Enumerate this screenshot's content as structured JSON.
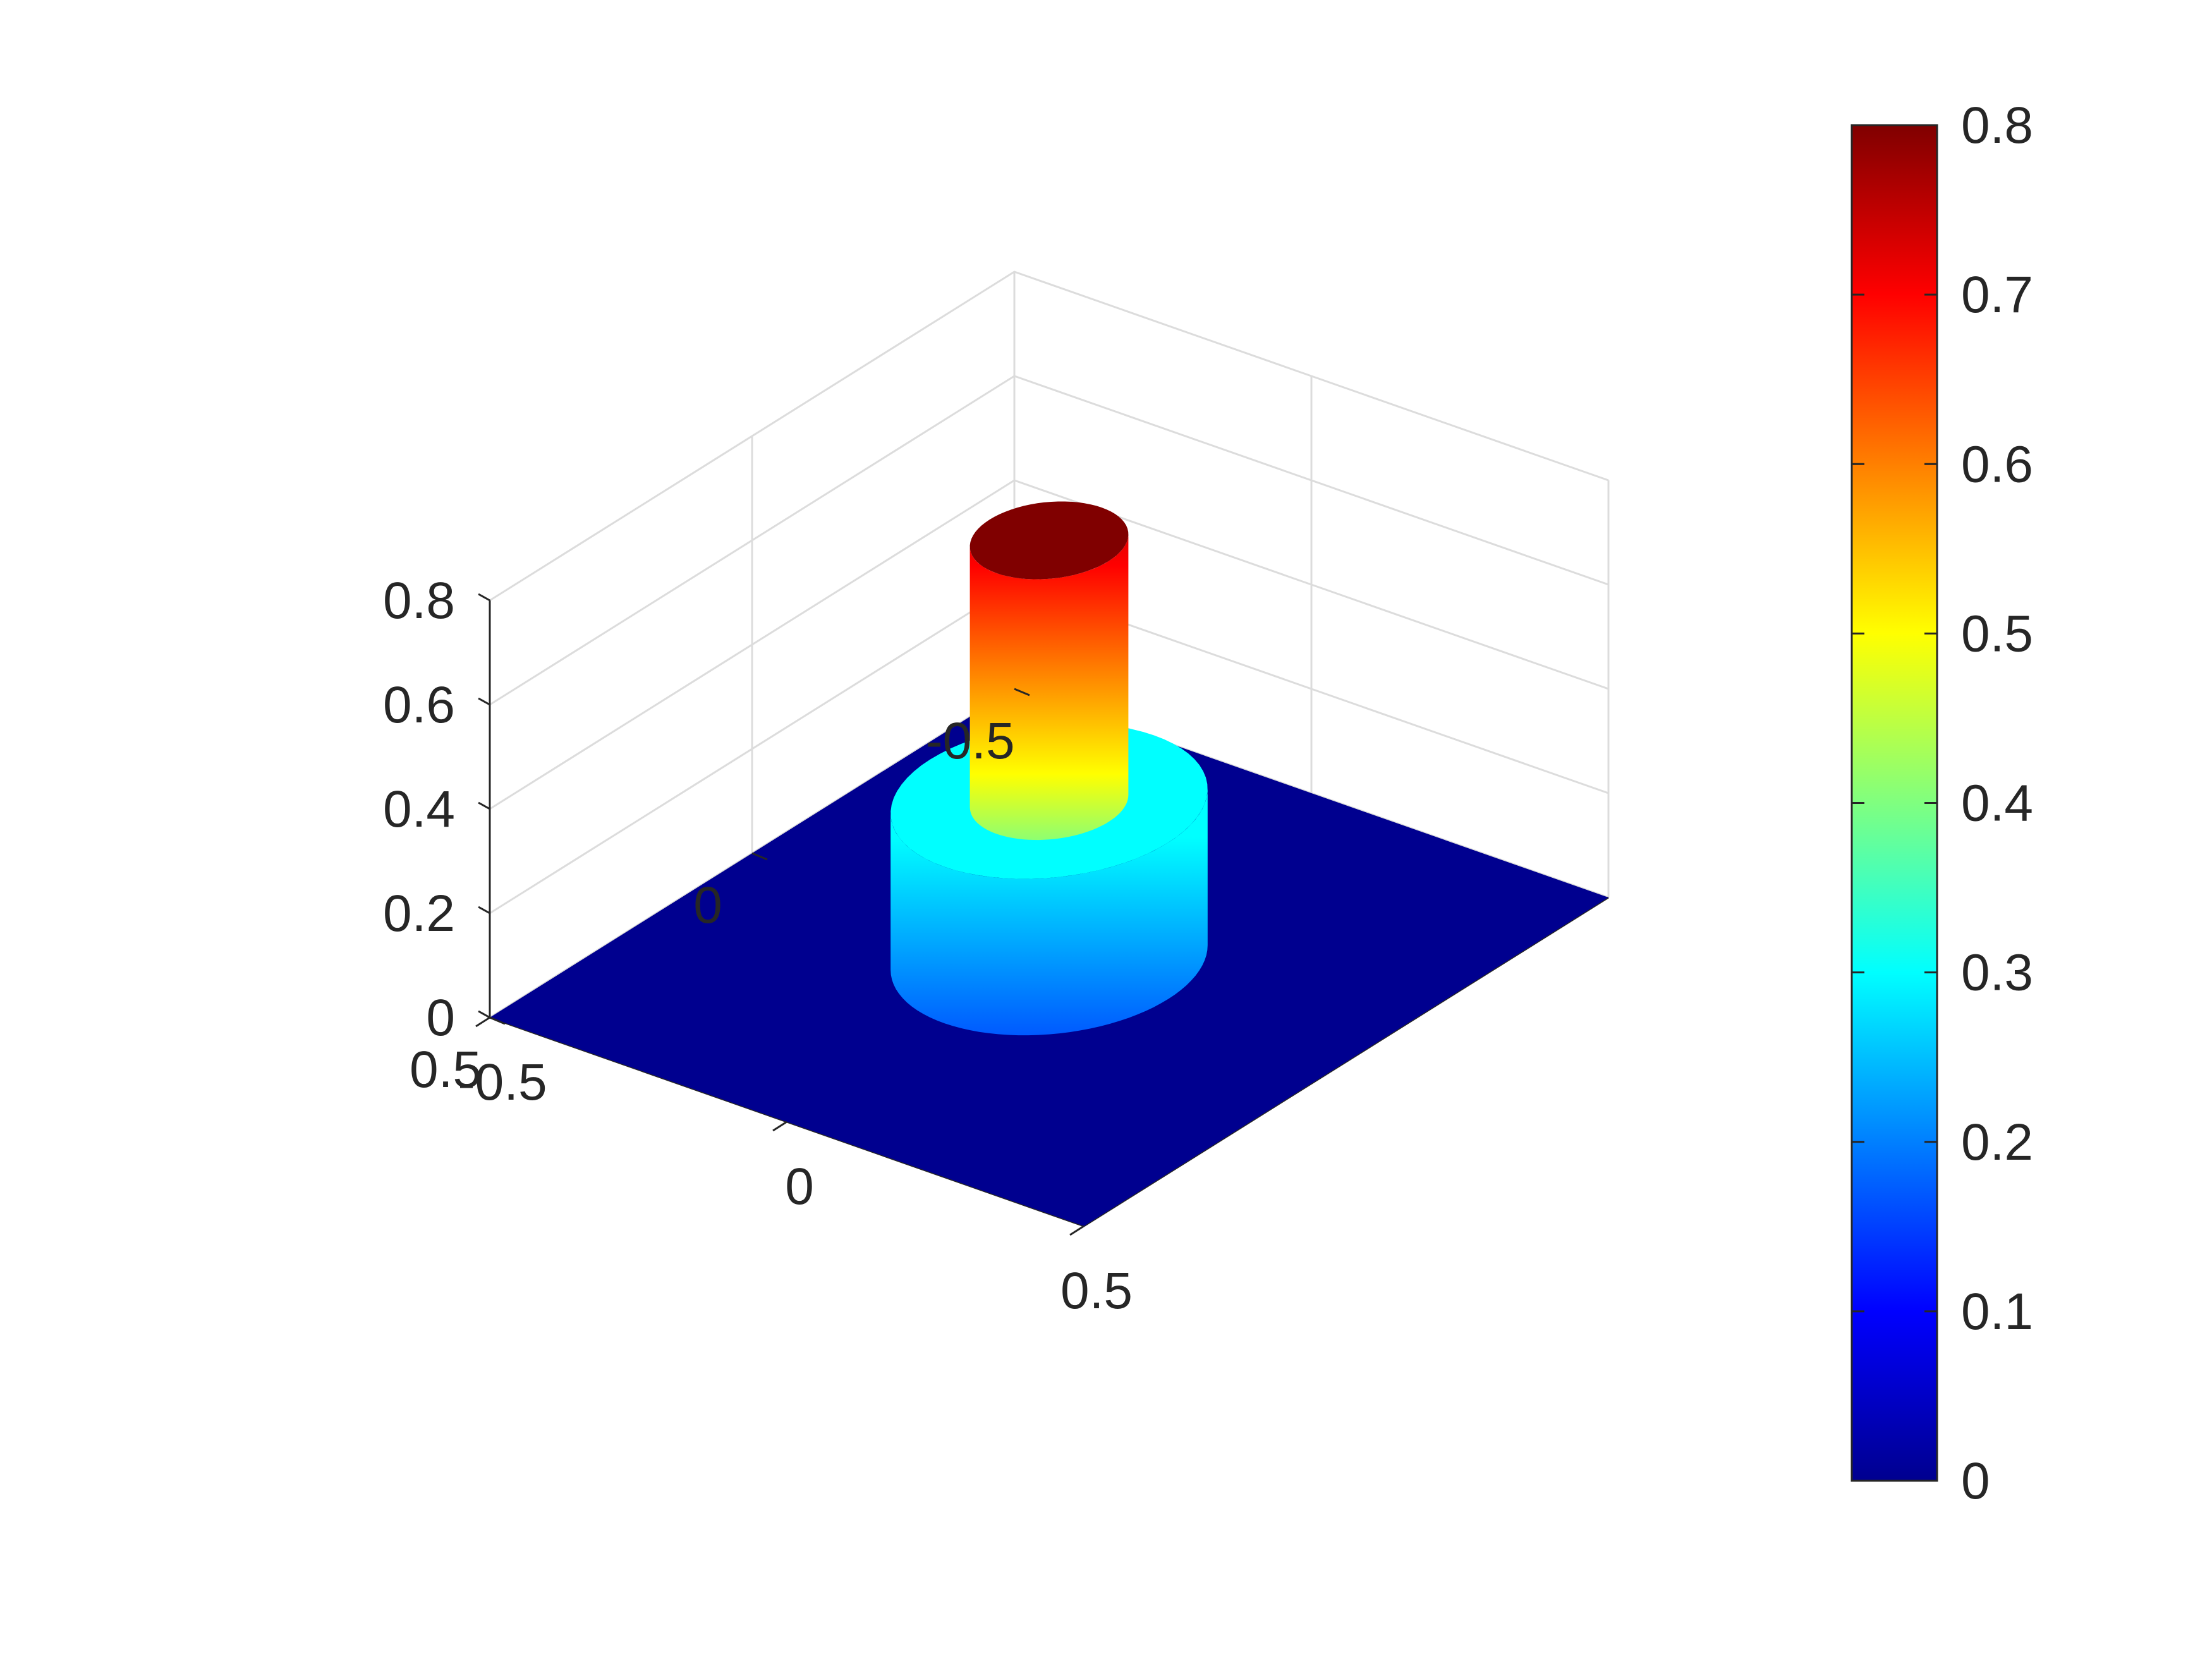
{
  "chart_data": {
    "type": "surface",
    "title": "",
    "xlabel": "",
    "ylabel": "",
    "zlabel": "",
    "view": "3d-isometric",
    "grid": true,
    "colormap": "jet",
    "xlim": [
      -0.5,
      0.5
    ],
    "ylim": [
      -0.5,
      0.5
    ],
    "zlim": [
      0,
      0.8
    ],
    "x_ticks": [
      "-0.5",
      "0",
      "0.5"
    ],
    "y_ticks": [
      "-0.5",
      "0",
      "0.5"
    ],
    "z_ticks": [
      "0",
      "0.2",
      "0.4",
      "0.6",
      "0.8"
    ],
    "surface": {
      "description_shape": "stepped-cylinder",
      "base_level": 0,
      "tiers": [
        {
          "radius": 0.2,
          "height": 0.3
        },
        {
          "radius": 0.1,
          "height": 0.8
        }
      ]
    },
    "colorbar": {
      "location": "right",
      "range": [
        0,
        0.8
      ],
      "ticks": [
        "0",
        "0.1",
        "0.2",
        "0.3",
        "0.4",
        "0.5",
        "0.6",
        "0.7",
        "0.8"
      ]
    }
  }
}
